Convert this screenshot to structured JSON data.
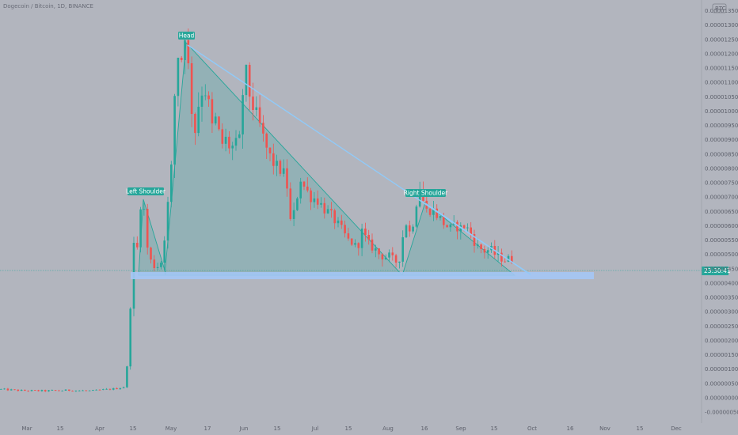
{
  "chart_data": {
    "type": "candlestick",
    "title": "Dogecoin / Bitcoin, 1D, BINANCE",
    "currency_badge": "BTC",
    "y_ticks": [
      "0.00001350",
      "0.00001300",
      "0.00001250",
      "0.00001200",
      "0.00001150",
      "0.00001100",
      "0.00001050",
      "0.00001000",
      "0.00000950",
      "0.00000900",
      "0.00000850",
      "0.00000800",
      "0.00000750",
      "0.00000700",
      "0.00000650",
      "0.00000600",
      "0.00000550",
      "0.00000500",
      "0.00000450",
      "0.00000400",
      "0.00000350",
      "0.00000300",
      "0.00000250",
      "0.00000200",
      "0.00000150",
      "0.00000100",
      "0.00000050",
      "0.00000000",
      "-0.00000050"
    ],
    "x_ticks": [
      "Mar",
      "15",
      "Apr",
      "15",
      "May",
      "17",
      "Jun",
      "15",
      "Jul",
      "15",
      "Aug",
      "16",
      "Sep",
      "15",
      "Oct",
      "16",
      "Nov",
      "15",
      "Dec"
    ],
    "price_label": "23:30:41",
    "last_price": 4.8e-06,
    "annotations": [
      {
        "label": "Left Shoulder"
      },
      {
        "label": "Head"
      },
      {
        "label": "Right Shoulder"
      }
    ],
    "ylim": [
      -5e-07,
      1.37e-05
    ],
    "colors": {
      "background": "#b2b5be",
      "up": "#26a69a",
      "down": "#ef5350",
      "triangle": "#26a69a",
      "trendline": "#90caf9",
      "support": "#a4c6f5",
      "price_line": "#26a69a"
    }
  }
}
